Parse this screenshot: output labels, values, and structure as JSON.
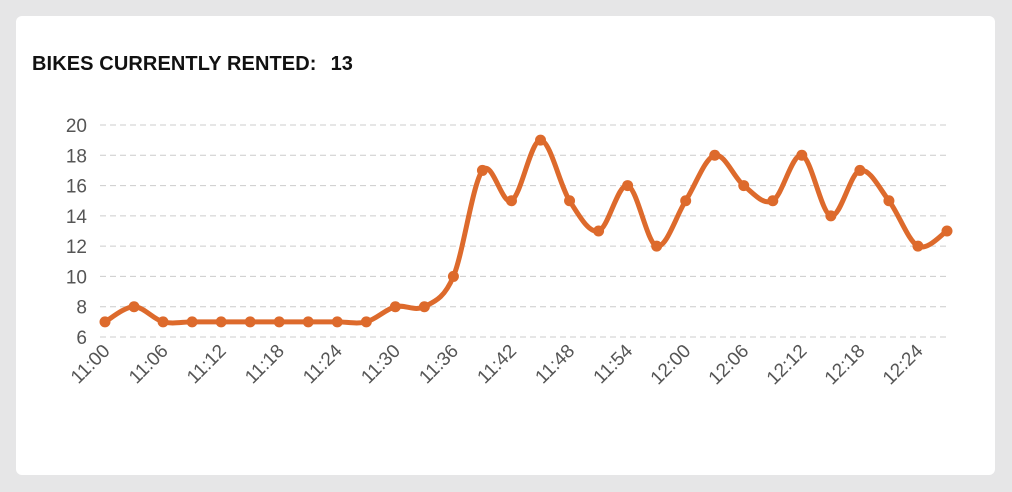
{
  "header": {
    "label": "BIKES CURRENTLY RENTED:",
    "count": "13"
  },
  "chart_data": {
    "type": "line",
    "title": "BIKES CURRENTLY RENTED:",
    "xlabel": "",
    "ylabel": "",
    "x": [
      "11:00",
      "11:03",
      "11:06",
      "11:09",
      "11:12",
      "11:15",
      "11:18",
      "11:21",
      "11:24",
      "11:27",
      "11:30",
      "11:33",
      "11:36",
      "11:39",
      "11:42",
      "11:45",
      "11:48",
      "11:51",
      "11:54",
      "11:57",
      "12:00",
      "12:03",
      "12:06",
      "12:09",
      "12:12",
      "12:15",
      "12:18",
      "12:21",
      "12:24",
      "12:27"
    ],
    "x_tick_labels": [
      "11:00",
      "11:06",
      "11:12",
      "11:18",
      "11:24",
      "11:30",
      "11:36",
      "11:42",
      "11:48",
      "11:54",
      "12:00",
      "12:06",
      "12:12",
      "12:18",
      "12:24"
    ],
    "series": [
      {
        "values": [
          7,
          8,
          7,
          7,
          7,
          7,
          7,
          7,
          7,
          7,
          8,
          8,
          10,
          17,
          15,
          19,
          15,
          13,
          16,
          12,
          15,
          18,
          16,
          15,
          18,
          14,
          17,
          15,
          12,
          13
        ],
        "color": "#dd6a2c"
      }
    ],
    "yticks": [
      6,
      8,
      10,
      12,
      14,
      16,
      18,
      20
    ],
    "ylim": [
      6,
      20
    ],
    "grid": true,
    "legend": "none"
  }
}
